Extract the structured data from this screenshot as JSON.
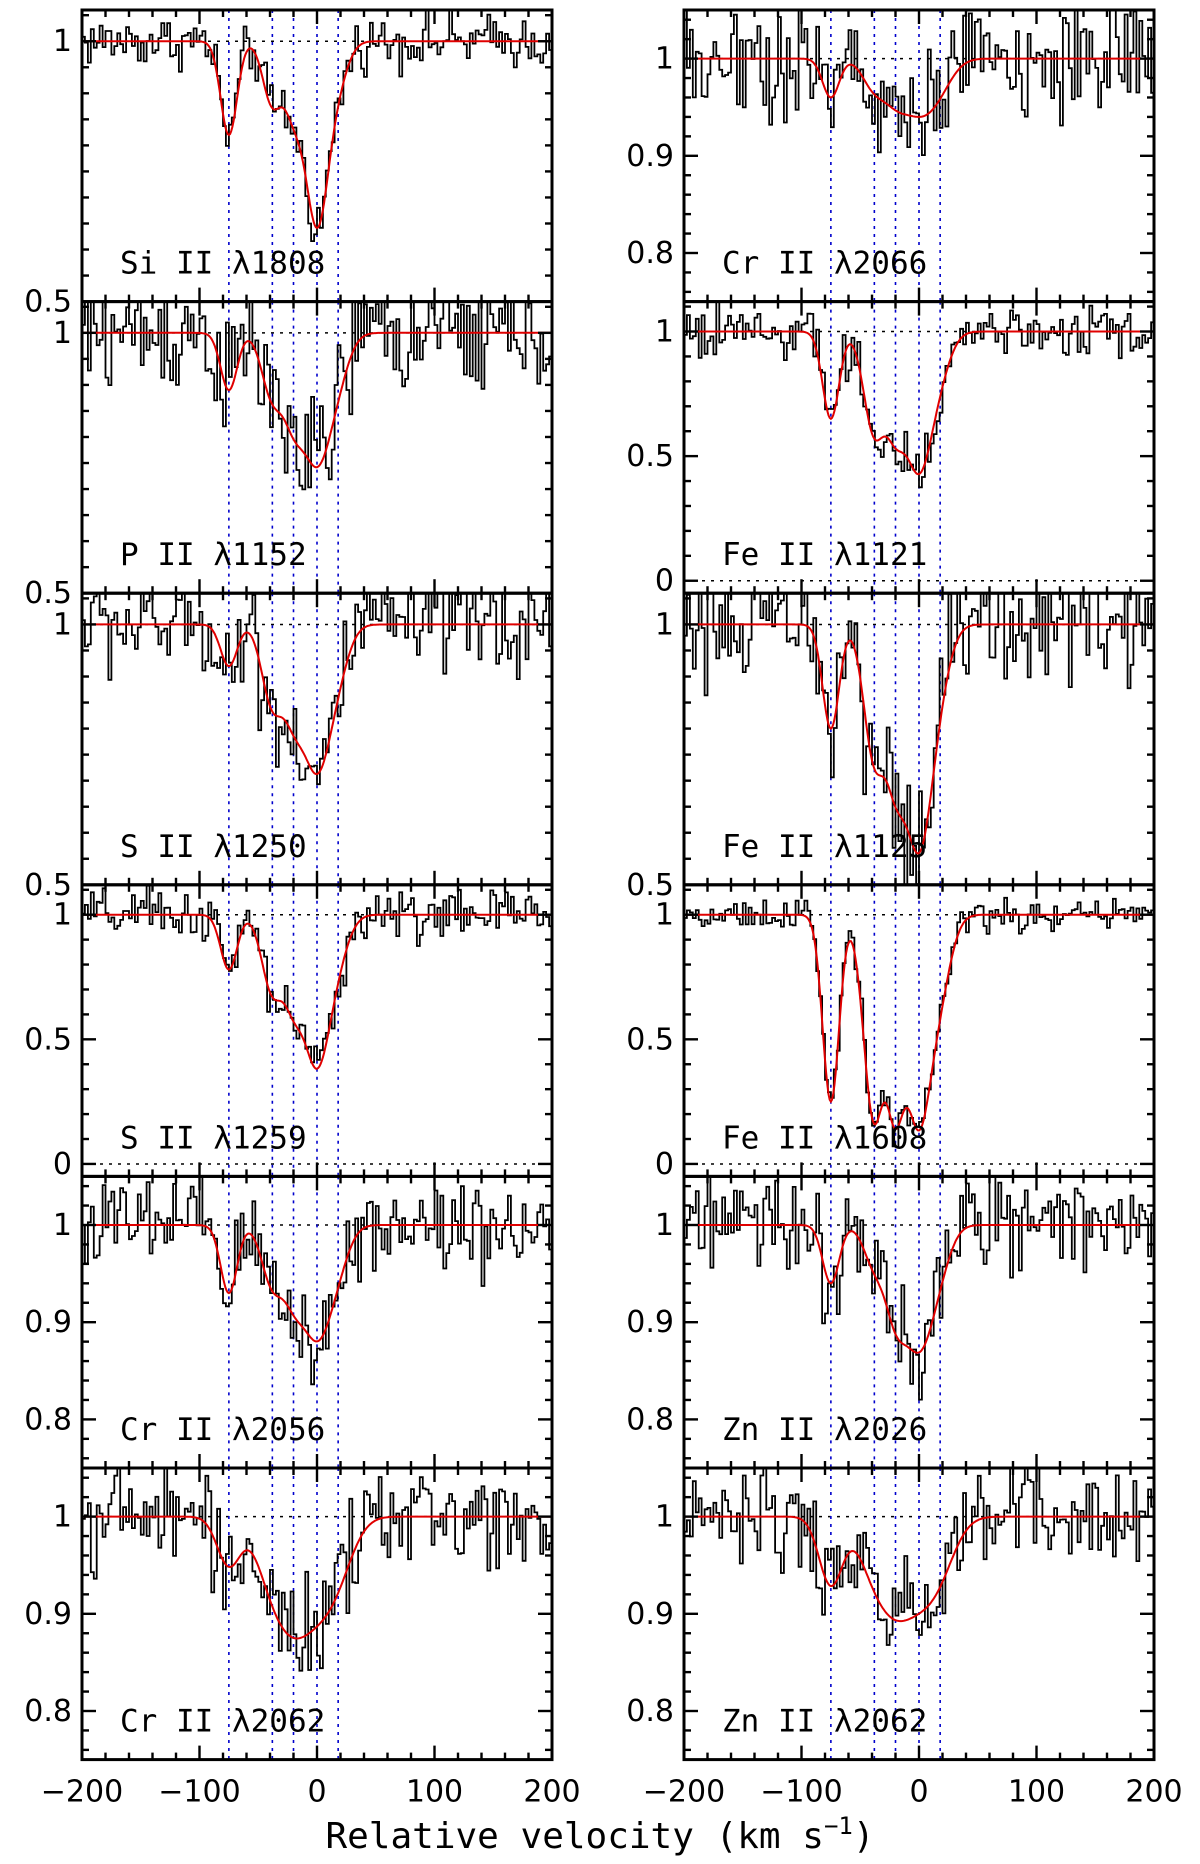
{
  "chart_data": {
    "type": "line",
    "xlabel": "Relative velocity (km s",
    "xlabel_sup": "−1",
    "xlabel_close": ")",
    "xlim": [
      -200,
      200
    ],
    "xticks": [
      -200,
      -100,
      0,
      100,
      200
    ],
    "xtick_labels": [
      "−200",
      "−100",
      "0",
      "100",
      "200"
    ],
    "component_velocities": [
      -75,
      -38,
      -20,
      0,
      18
    ],
    "colors": {
      "data": "#000000",
      "model": "#e00000",
      "components": "#0000cc"
    },
    "panels": [
      {
        "id": "si2-1808",
        "col": 0,
        "row": 0,
        "label": "Si II λ1808",
        "ylim": [
          0.5,
          1.06
        ],
        "yticks": [
          0.5,
          1
        ],
        "ytick_labels": [
          "0.5",
          "1"
        ],
        "ref_lines": [
          1
        ],
        "noise": 0.025,
        "depths": [
          0.18,
          0.12,
          0.12,
          0.35,
          0.06
        ],
        "widths": [
          7,
          8,
          8,
          10,
          9
        ],
        "upper": 1,
        "lower": 0
      },
      {
        "id": "p2-1152",
        "col": 0,
        "row": 1,
        "label": "P II λ1152",
        "ylim": [
          0.5,
          1.06
        ],
        "yticks": [
          0.5,
          1
        ],
        "ytick_labels": [
          "0.5",
          "1"
        ],
        "ref_lines": [
          1
        ],
        "noise": 0.06,
        "depths": [
          0.11,
          0.12,
          0.14,
          0.24,
          0.06
        ],
        "widths": [
          7,
          9,
          9,
          12,
          10
        ],
        "upper": 1,
        "lower": 0
      },
      {
        "id": "s2-1250",
        "col": 0,
        "row": 2,
        "label": "S II λ1250",
        "ylim": [
          0.5,
          1.06
        ],
        "yticks": [
          0.5,
          1
        ],
        "ytick_labels": [
          "0.5",
          "1"
        ],
        "ref_lines": [
          1
        ],
        "noise": 0.05,
        "depths": [
          0.08,
          0.15,
          0.14,
          0.27,
          0.06
        ],
        "widths": [
          7,
          9,
          9,
          12,
          10
        ],
        "upper": 1,
        "lower": 0
      },
      {
        "id": "s2-1259",
        "col": 0,
        "row": 3,
        "label": "S II λ1259",
        "ylim": [
          -0.05,
          1.12
        ],
        "yticks": [
          0,
          0.5,
          1
        ],
        "ytick_labels": [
          "0",
          "0.5",
          "1"
        ],
        "ref_lines": [
          1,
          0
        ],
        "noise": 0.05,
        "depths": [
          0.22,
          0.3,
          0.3,
          0.6,
          0.1
        ],
        "widths": [
          7,
          9,
          9,
          12,
          10
        ],
        "upper": 1,
        "lower": 0
      },
      {
        "id": "cr2-2056",
        "col": 0,
        "row": 4,
        "label": "Cr II λ2056",
        "ylim": [
          0.75,
          1.05
        ],
        "yticks": [
          0.8,
          0.9,
          1
        ],
        "ytick_labels": [
          "0.8",
          "0.9",
          "1"
        ],
        "ref_lines": [
          1
        ],
        "noise": 0.025,
        "depths": [
          0.07,
          0.06,
          0.06,
          0.11,
          0.03
        ],
        "widths": [
          7,
          9,
          9,
          12,
          10
        ],
        "upper": 1,
        "lower": 0
      },
      {
        "id": "cr2-2062",
        "col": 0,
        "row": 5,
        "label": "Cr II λ2062",
        "ylim": [
          0.75,
          1.05
        ],
        "yticks": [
          0.8,
          0.9,
          1
        ],
        "ytick_labels": [
          "0.8",
          "0.9",
          "1"
        ],
        "ref_lines": [
          1
        ],
        "noise": 0.025,
        "depths": [
          0.05,
          0.06,
          0.06,
          0.08,
          0.03
        ],
        "widths": [
          10,
          14,
          14,
          18,
          14
        ],
        "upper": 1,
        "lower": 0
      },
      {
        "id": "cr2-2066",
        "col": 1,
        "row": 0,
        "label": "Cr II λ2066",
        "ylim": [
          0.75,
          1.05
        ],
        "yticks": [
          0.8,
          0.9,
          1
        ],
        "ytick_labels": [
          "0.8",
          "0.9",
          "1"
        ],
        "ref_lines": [
          1
        ],
        "noise": 0.03,
        "depths": [
          0.04,
          0.03,
          0.03,
          0.05,
          0.02
        ],
        "widths": [
          7,
          10,
          10,
          14,
          12
        ],
        "upper": 1,
        "lower": 0
      },
      {
        "id": "fe2-1121",
        "col": 1,
        "row": 1,
        "label": "Fe II λ1121",
        "ylim": [
          -0.05,
          1.12
        ],
        "yticks": [
          0,
          0.5,
          1
        ],
        "ytick_labels": [
          "0",
          "0.5",
          "1"
        ],
        "ref_lines": [
          1,
          0
        ],
        "noise": 0.05,
        "depths": [
          0.35,
          0.4,
          0.35,
          0.55,
          0.1
        ],
        "widths": [
          7,
          9,
          9,
          12,
          10
        ],
        "upper": 1,
        "lower": 0
      },
      {
        "id": "fe2-1125",
        "col": 1,
        "row": 2,
        "label": "Fe II λ1125",
        "ylim": [
          0.5,
          1.06
        ],
        "yticks": [
          0.5,
          1
        ],
        "ytick_labels": [
          "0.5",
          "1"
        ],
        "ref_lines": [
          1
        ],
        "noise": 0.06,
        "depths": [
          0.2,
          0.25,
          0.25,
          0.42,
          0.06
        ],
        "widths": [
          7,
          9,
          9,
          12,
          10
        ],
        "upper": 1,
        "lower": 0
      },
      {
        "id": "fe2-1608",
        "col": 1,
        "row": 3,
        "label": "Fe II λ1608",
        "ylim": [
          -0.05,
          1.12
        ],
        "yticks": [
          0,
          0.5,
          1
        ],
        "ytick_labels": [
          "0",
          "0.5",
          "1"
        ],
        "ref_lines": [
          1,
          0
        ],
        "noise": 0.03,
        "depths": [
          0.75,
          0.82,
          0.8,
          0.85,
          0.2
        ],
        "widths": [
          7,
          9,
          9,
          12,
          10
        ],
        "upper": 1,
        "lower": 0
      },
      {
        "id": "zn2-2026",
        "col": 1,
        "row": 4,
        "label": "Zn II λ2026",
        "ylim": [
          0.75,
          1.05
        ],
        "yticks": [
          0.8,
          0.9,
          1
        ],
        "ytick_labels": [
          "0.8",
          "0.9",
          "1"
        ],
        "ref_lines": [
          1
        ],
        "noise": 0.025,
        "depths": [
          0.06,
          0.04,
          0.08,
          0.12,
          0.03
        ],
        "widths": [
          7,
          9,
          9,
          12,
          10
        ],
        "upper": 1,
        "lower": 0
      },
      {
        "id": "zn2-2062",
        "col": 1,
        "row": 5,
        "label": "Zn II λ2062",
        "ylim": [
          0.75,
          1.05
        ],
        "yticks": [
          0.8,
          0.9,
          1
        ],
        "ytick_labels": [
          "0.8",
          "0.9",
          "1"
        ],
        "ref_lines": [
          1
        ],
        "noise": 0.025,
        "depths": [
          0.07,
          0.05,
          0.05,
          0.07,
          0.03
        ],
        "widths": [
          10,
          14,
          14,
          18,
          14
        ],
        "upper": 1,
        "lower": 0
      }
    ]
  }
}
